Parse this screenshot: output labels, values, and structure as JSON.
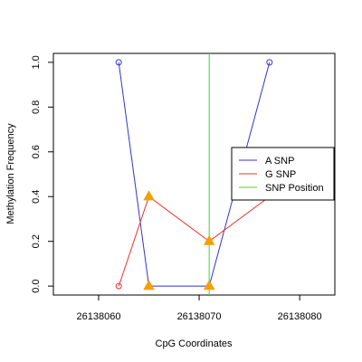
{
  "chart_data": {
    "type": "line",
    "xlabel": "CpG Coordinates",
    "ylabel": "Methylation Frequency",
    "xlim": [
      26138055.5,
      26138083.5
    ],
    "ylim": [
      -0.04,
      1.04
    ],
    "x_ticks": [
      26138060,
      26138070,
      26138080
    ],
    "y_ticks": [
      0.0,
      0.2,
      0.4,
      0.6,
      0.8,
      1.0
    ],
    "x_tick_labels": [
      "26138060",
      "26138070",
      "26138080"
    ],
    "y_tick_labels": [
      "0.0",
      "0.2",
      "0.4",
      "0.6",
      "0.8",
      "1.0"
    ],
    "snp_position": 26138071,
    "series": [
      {
        "name": "A SNP",
        "color": "#3333cc",
        "points": [
          {
            "x": 26138062,
            "y": 1.0,
            "marker": "circle"
          },
          {
            "x": 26138065,
            "y": 0.0,
            "marker": "triangle"
          },
          {
            "x": 26138071,
            "y": 0.0,
            "marker": "triangle"
          },
          {
            "x": 26138077,
            "y": 1.0,
            "marker": "circle"
          }
        ]
      },
      {
        "name": "G SNP",
        "color": "#e8312b",
        "points": [
          {
            "x": 26138062,
            "y": 0.0,
            "marker": "circle"
          },
          {
            "x": 26138065,
            "y": 0.4,
            "marker": "triangle"
          },
          {
            "x": 26138071,
            "y": 0.2,
            "marker": "triangle"
          },
          {
            "x": 26138077,
            "y": 0.4,
            "marker": "none"
          }
        ]
      }
    ],
    "legend": {
      "placement": "right",
      "entries": [
        {
          "label": "A SNP",
          "color": "#3333cc"
        },
        {
          "label": "G SNP",
          "color": "#e8312b"
        },
        {
          "label": "SNP Position",
          "color": "#33dd33"
        }
      ]
    },
    "triangle_color": "#f5a000"
  }
}
